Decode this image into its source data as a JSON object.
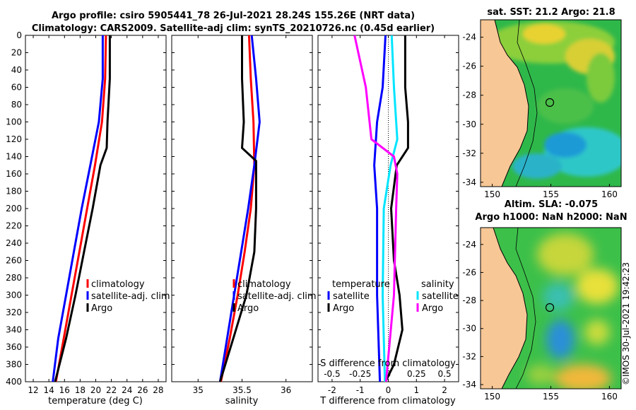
{
  "title_line1": "Argo profile: csiro 5905441_78 26-Jul-2021 28.24S 155.26E (NRT data)",
  "title_line2": "Climatology: CARS2009. Satellite-adj clim: synTS_20210726.nc (0.45d earlier)",
  "map1_title": "sat. SST: 21.2 Argo: 21.8",
  "map2_title_line1": "Altim. SLA: -0.075",
  "map2_title_line2": "Argo h1000: NaN h2000: NaN",
  "copyright": "©IMOS 30-Jul-2021 19:42:23",
  "colors": {
    "climatology": "#ff0000",
    "satellite": "#0000ff",
    "argo": "#000000",
    "sal_satellite": "#00e5ff",
    "sal_argo": "#ff00ff",
    "land": "#f7c796"
  },
  "chart_data": [
    {
      "type": "line",
      "name": "temperature-profile",
      "xlabel": "temperature (deg C)",
      "ylabel": "",
      "xlim": [
        11,
        29
      ],
      "ylim": [
        400,
        0
      ],
      "xticks": [
        "12",
        "14",
        "16",
        "18",
        "20",
        "22",
        "24",
        "26",
        "28"
      ],
      "yticks": [
        "0",
        "20",
        "40",
        "60",
        "80",
        "100",
        "120",
        "140",
        "160",
        "180",
        "200",
        "220",
        "240",
        "260",
        "280",
        "300",
        "320",
        "340",
        "360",
        "380",
        "400"
      ],
      "legend": [
        "climatology",
        "satellite-adj. clim",
        "Argo"
      ],
      "series": [
        {
          "name": "climatology",
          "depth": [
            0,
            50,
            100,
            150,
            200,
            250,
            300,
            350,
            400
          ],
          "values": [
            21.3,
            21.2,
            20.8,
            19.9,
            18.9,
            17.9,
            16.9,
            15.9,
            14.9
          ]
        },
        {
          "name": "satellite-adj. clim",
          "depth": [
            0,
            50,
            100,
            150,
            200,
            250,
            300,
            350,
            400
          ],
          "values": [
            20.9,
            20.9,
            20.4,
            19.3,
            18.2,
            17.2,
            16.2,
            15.2,
            14.5
          ]
        },
        {
          "name": "Argo",
          "depth": [
            0,
            50,
            100,
            130,
            150,
            200,
            250,
            300,
            350,
            400
          ],
          "values": [
            21.8,
            21.8,
            21.5,
            21.4,
            20.6,
            19.6,
            18.5,
            17.4,
            16.2,
            14.8
          ]
        }
      ]
    },
    {
      "type": "line",
      "name": "salinity-profile",
      "xlabel": "salinity",
      "xlim": [
        34.7,
        36.3
      ],
      "ylim": [
        400,
        0
      ],
      "xticks": [
        "35",
        "35.5",
        "36"
      ],
      "legend": [
        "climatology",
        "satellite-adj. clim",
        "Argo"
      ],
      "series": [
        {
          "name": "climatology",
          "depth": [
            0,
            50,
            100,
            150,
            200,
            250,
            300,
            350,
            400
          ],
          "values": [
            35.58,
            35.6,
            35.63,
            35.64,
            35.6,
            35.53,
            35.45,
            35.36,
            35.26
          ]
        },
        {
          "name": "satellite-adj. clim",
          "depth": [
            0,
            50,
            100,
            150,
            200,
            250,
            300,
            350,
            400
          ],
          "values": [
            35.61,
            35.66,
            35.7,
            35.64,
            35.57,
            35.49,
            35.41,
            35.33,
            35.25
          ]
        },
        {
          "name": "Argo",
          "depth": [
            0,
            50,
            100,
            130,
            145,
            200,
            250,
            300,
            350,
            400
          ],
          "values": [
            35.5,
            35.5,
            35.52,
            35.5,
            35.66,
            35.66,
            35.64,
            35.55,
            35.4,
            35.25
          ]
        }
      ]
    },
    {
      "type": "line",
      "name": "difference-profile",
      "xlabel": "T difference from climatology",
      "top_axis_label": "S difference from climatology",
      "xlim": [
        -2.5,
        2.5
      ],
      "ylim": [
        400,
        0
      ],
      "xticks": [
        "-2",
        "-1",
        "0",
        "1",
        "2"
      ],
      "top_xticks": [
        "-0.5",
        "-0.25",
        "0",
        "0.25",
        "0.5"
      ],
      "legend_temperature_header": "temperature",
      "legend_salinity_header": "salinity",
      "legend_temperature": [
        "satellite",
        "Argo"
      ],
      "legend_salinity": [
        "satellite",
        "Argo"
      ],
      "series": [
        {
          "name": "temperature satellite",
          "depth": [
            0,
            60,
            100,
            150,
            200,
            300,
            400
          ],
          "values": [
            -0.1,
            -0.2,
            -0.4,
            -0.5,
            -0.4,
            -0.4,
            -0.3
          ]
        },
        {
          "name": "temperature Argo",
          "depth": [
            0,
            60,
            100,
            130,
            150,
            200,
            260,
            300,
            340,
            380,
            400
          ],
          "values": [
            0.6,
            0.6,
            0.7,
            0.7,
            0.3,
            0.1,
            0.2,
            0.4,
            0.5,
            0.2,
            -0.1
          ]
        },
        {
          "name": "salinity satellite",
          "depth": [
            0,
            60,
            120,
            150,
            200,
            300,
            400
          ],
          "values": [
            0.03,
            0.05,
            0.08,
            0.02,
            -0.04,
            -0.05,
            -0.03
          ]
        },
        {
          "name": "salinity Argo",
          "depth": [
            0,
            60,
            120,
            140,
            160,
            200,
            300,
            400
          ],
          "values": [
            -0.3,
            -0.2,
            -0.15,
            0.05,
            0.08,
            0.07,
            0.05,
            -0.02
          ]
        }
      ]
    },
    {
      "type": "heatmap",
      "name": "sst-map",
      "title": "sat. SST: 21.2 Argo: 21.8",
      "xlim": [
        149,
        161
      ],
      "ylim": [
        -34.3,
        -22.8
      ],
      "xticks": [
        "150",
        "155",
        "160"
      ],
      "yticks": [
        "-24",
        "-26",
        "-28",
        "-30",
        "-32",
        "-34"
      ],
      "argo_position": {
        "lon": 155.26,
        "lat": -28.24
      }
    },
    {
      "type": "heatmap",
      "name": "sla-map",
      "title": "Altim. SLA: -0.075",
      "xlim": [
        149,
        161
      ],
      "ylim": [
        -34.3,
        -22.8
      ],
      "xticks": [
        "150",
        "155",
        "160"
      ],
      "yticks": [
        "-24",
        "-26",
        "-28",
        "-30",
        "-32",
        "-34"
      ],
      "argo_position": {
        "lon": 155.26,
        "lat": -28.24
      }
    }
  ]
}
